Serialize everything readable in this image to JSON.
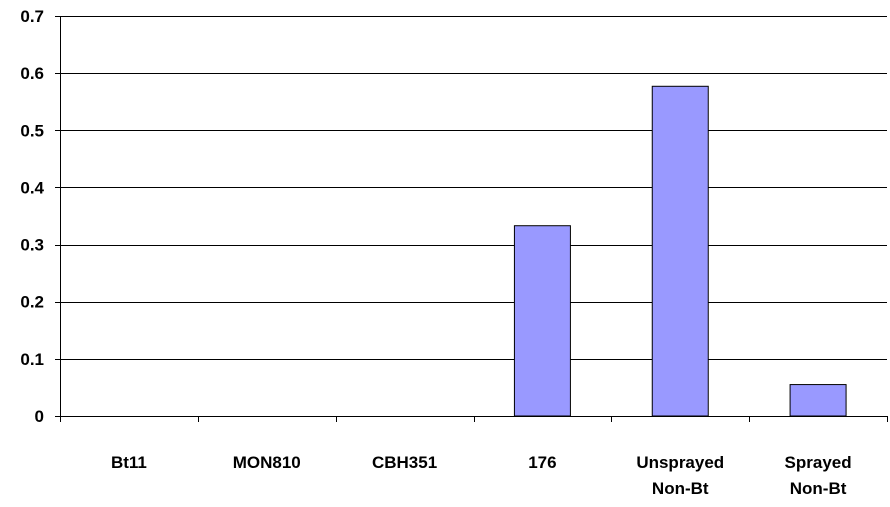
{
  "chart_data": {
    "type": "bar",
    "title": "",
    "xlabel": "",
    "ylabel": "",
    "categories": [
      [
        "Bt11"
      ],
      [
        "MON810"
      ],
      [
        "CBH351"
      ],
      [
        "176"
      ],
      [
        "Unsprayed",
        "Non-Bt"
      ],
      [
        "Sprayed",
        "Non-Bt"
      ]
    ],
    "values": [
      0,
      0,
      0,
      0.333,
      0.577,
      0.055
    ],
    "ylim": [
      0,
      0.7
    ],
    "yticks": [
      "0",
      "0.1",
      "0.2",
      "0.3",
      "0.4",
      "0.5",
      "0.6",
      "0.7"
    ],
    "grid": true,
    "legend": "none",
    "colors": {
      "bar_fill": "#9999ff",
      "bar_stroke": "#000000",
      "grid": "#000000",
      "axis": "#000000"
    }
  }
}
